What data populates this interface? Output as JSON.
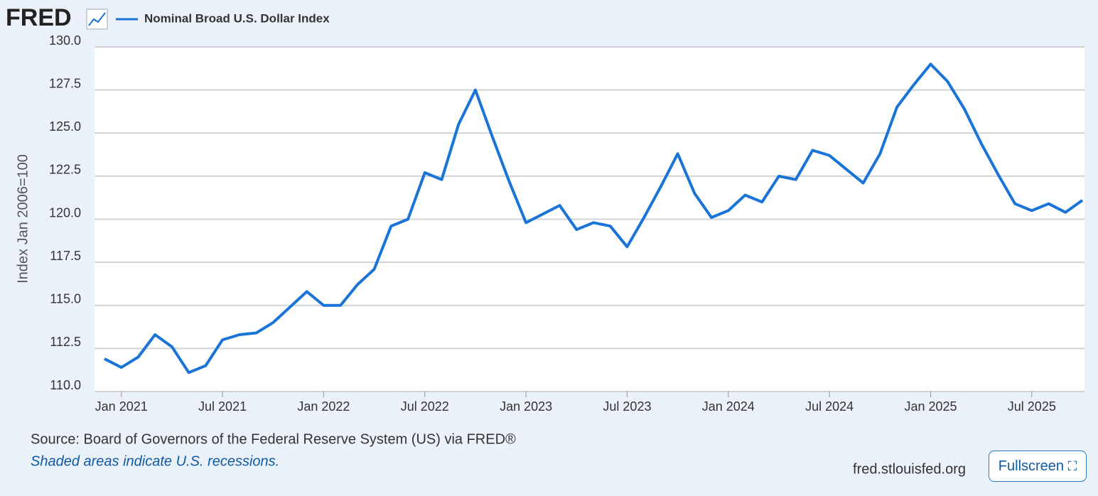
{
  "chart_data": {
    "type": "line",
    "logo": "FRED",
    "title": "Nominal Broad U.S. Dollar Index",
    "y_label": "Index Jan 2006=100",
    "x": [
      "2020-12",
      "2021-01",
      "2021-02",
      "2021-03",
      "2021-04",
      "2021-05",
      "2021-06",
      "2021-07",
      "2021-08",
      "2021-09",
      "2021-10",
      "2021-11",
      "2021-12",
      "2022-01",
      "2022-02",
      "2022-03",
      "2022-04",
      "2022-05",
      "2022-06",
      "2022-07",
      "2022-08",
      "2022-09",
      "2022-10",
      "2022-11",
      "2022-12",
      "2023-01",
      "2023-02",
      "2023-03",
      "2023-04",
      "2023-05",
      "2023-06",
      "2023-07",
      "2023-08",
      "2023-09",
      "2023-10",
      "2023-11",
      "2023-12",
      "2024-01",
      "2024-02",
      "2024-03",
      "2024-04",
      "2024-05",
      "2024-06",
      "2024-07",
      "2024-08",
      "2024-09",
      "2024-10",
      "2024-11",
      "2024-12",
      "2025-01",
      "2025-02",
      "2025-03",
      "2025-04",
      "2025-05",
      "2025-06",
      "2025-07",
      "2025-08",
      "2025-09",
      "2025-10"
    ],
    "series": [
      {
        "name": "Nominal Broad U.S. Dollar Index",
        "color": "#1a74d8",
        "values": [
          111.9,
          111.4,
          112.0,
          113.3,
          112.6,
          111.1,
          111.5,
          113.0,
          113.3,
          113.4,
          114.0,
          114.9,
          115.8,
          115.0,
          115.0,
          116.2,
          117.1,
          119.6,
          120.0,
          122.7,
          122.3,
          125.5,
          127.5,
          124.8,
          122.2,
          119.8,
          120.3,
          120.8,
          119.4,
          119.8,
          119.6,
          118.4,
          120.1,
          121.9,
          123.8,
          121.5,
          120.1,
          120.5,
          121.4,
          121.0,
          122.5,
          122.3,
          124.0,
          123.7,
          122.9,
          122.1,
          123.8,
          126.5,
          127.8,
          129.0,
          128.0,
          126.4,
          124.4,
          122.6,
          120.9,
          120.5,
          120.9,
          120.4,
          121.1
        ]
      }
    ],
    "xlim": [
      "2020-12",
      "2025-10"
    ],
    "xticks": [
      {
        "value": "2021-01",
        "label": "Jan 2021"
      },
      {
        "value": "2021-07",
        "label": "Jul 2021"
      },
      {
        "value": "2022-01",
        "label": "Jan 2022"
      },
      {
        "value": "2022-07",
        "label": "Jul 2022"
      },
      {
        "value": "2023-01",
        "label": "Jan 2023"
      },
      {
        "value": "2023-07",
        "label": "Jul 2023"
      },
      {
        "value": "2024-01",
        "label": "Jan 2024"
      },
      {
        "value": "2024-07",
        "label": "Jul 2024"
      },
      {
        "value": "2025-01",
        "label": "Jan 2025"
      },
      {
        "value": "2025-07",
        "label": "Jul 2025"
      }
    ],
    "ylim": [
      110,
      130
    ],
    "yticks": [
      {
        "value": 110,
        "label": "110.0"
      },
      {
        "value": 112.5,
        "label": "112.5"
      },
      {
        "value": 115,
        "label": "115.0"
      },
      {
        "value": 117.5,
        "label": "117.5"
      },
      {
        "value": 120,
        "label": "120.0"
      },
      {
        "value": 122.5,
        "label": "122.5"
      },
      {
        "value": 125,
        "label": "125.0"
      },
      {
        "value": 127.5,
        "label": "127.5"
      },
      {
        "value": 130,
        "label": "130.0"
      }
    ],
    "grid": true,
    "source": "Source: Board of Governors of the Federal Reserve System (US) via FRED®",
    "note": "Shaded areas indicate U.S. recessions.",
    "site": "fred.stlouisfed.org",
    "button": "Fullscreen"
  }
}
